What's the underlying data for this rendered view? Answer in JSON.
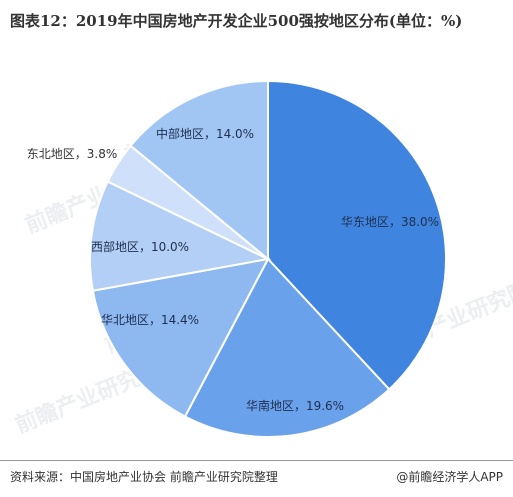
{
  "header": {
    "title": "图表12：2019年中国房地产开发企业500强按地区分布(单位：%)"
  },
  "footer": {
    "source": "资料来源：中国房地产业协会 前瞻产业研究院整理",
    "brand": "@前瞻经济学人APP"
  },
  "watermark": "前瞻产业研究院",
  "colors": {
    "accent": "#3f85df",
    "text": "#333333"
  },
  "chart_data": {
    "type": "pie",
    "title": "图表12：2019年中国房地产开发企业500强按地区分布(单位：%)",
    "unit": "%",
    "slices": [
      {
        "label": "华东地区",
        "value": 38.0,
        "display": "华东地区，38.0%",
        "color": "#3f85df"
      },
      {
        "label": "华南地区",
        "value": 19.6,
        "display": "华南地区，19.6%",
        "color": "#6aa1eb"
      },
      {
        "label": "华北地区",
        "value": 14.4,
        "display": "华北地区，14.4%",
        "color": "#8db8f0"
      },
      {
        "label": "西部地区",
        "value": 10.0,
        "display": "西部地区，10.0%",
        "color": "#b3cff6"
      },
      {
        "label": "东北地区",
        "value": 3.8,
        "display": "东北地区，3.8%",
        "color": "#cfe1fa"
      },
      {
        "label": "中部地区",
        "value": 14.0,
        "display": "中部地区，14.0%",
        "color": "#a2c6f4"
      }
    ]
  }
}
